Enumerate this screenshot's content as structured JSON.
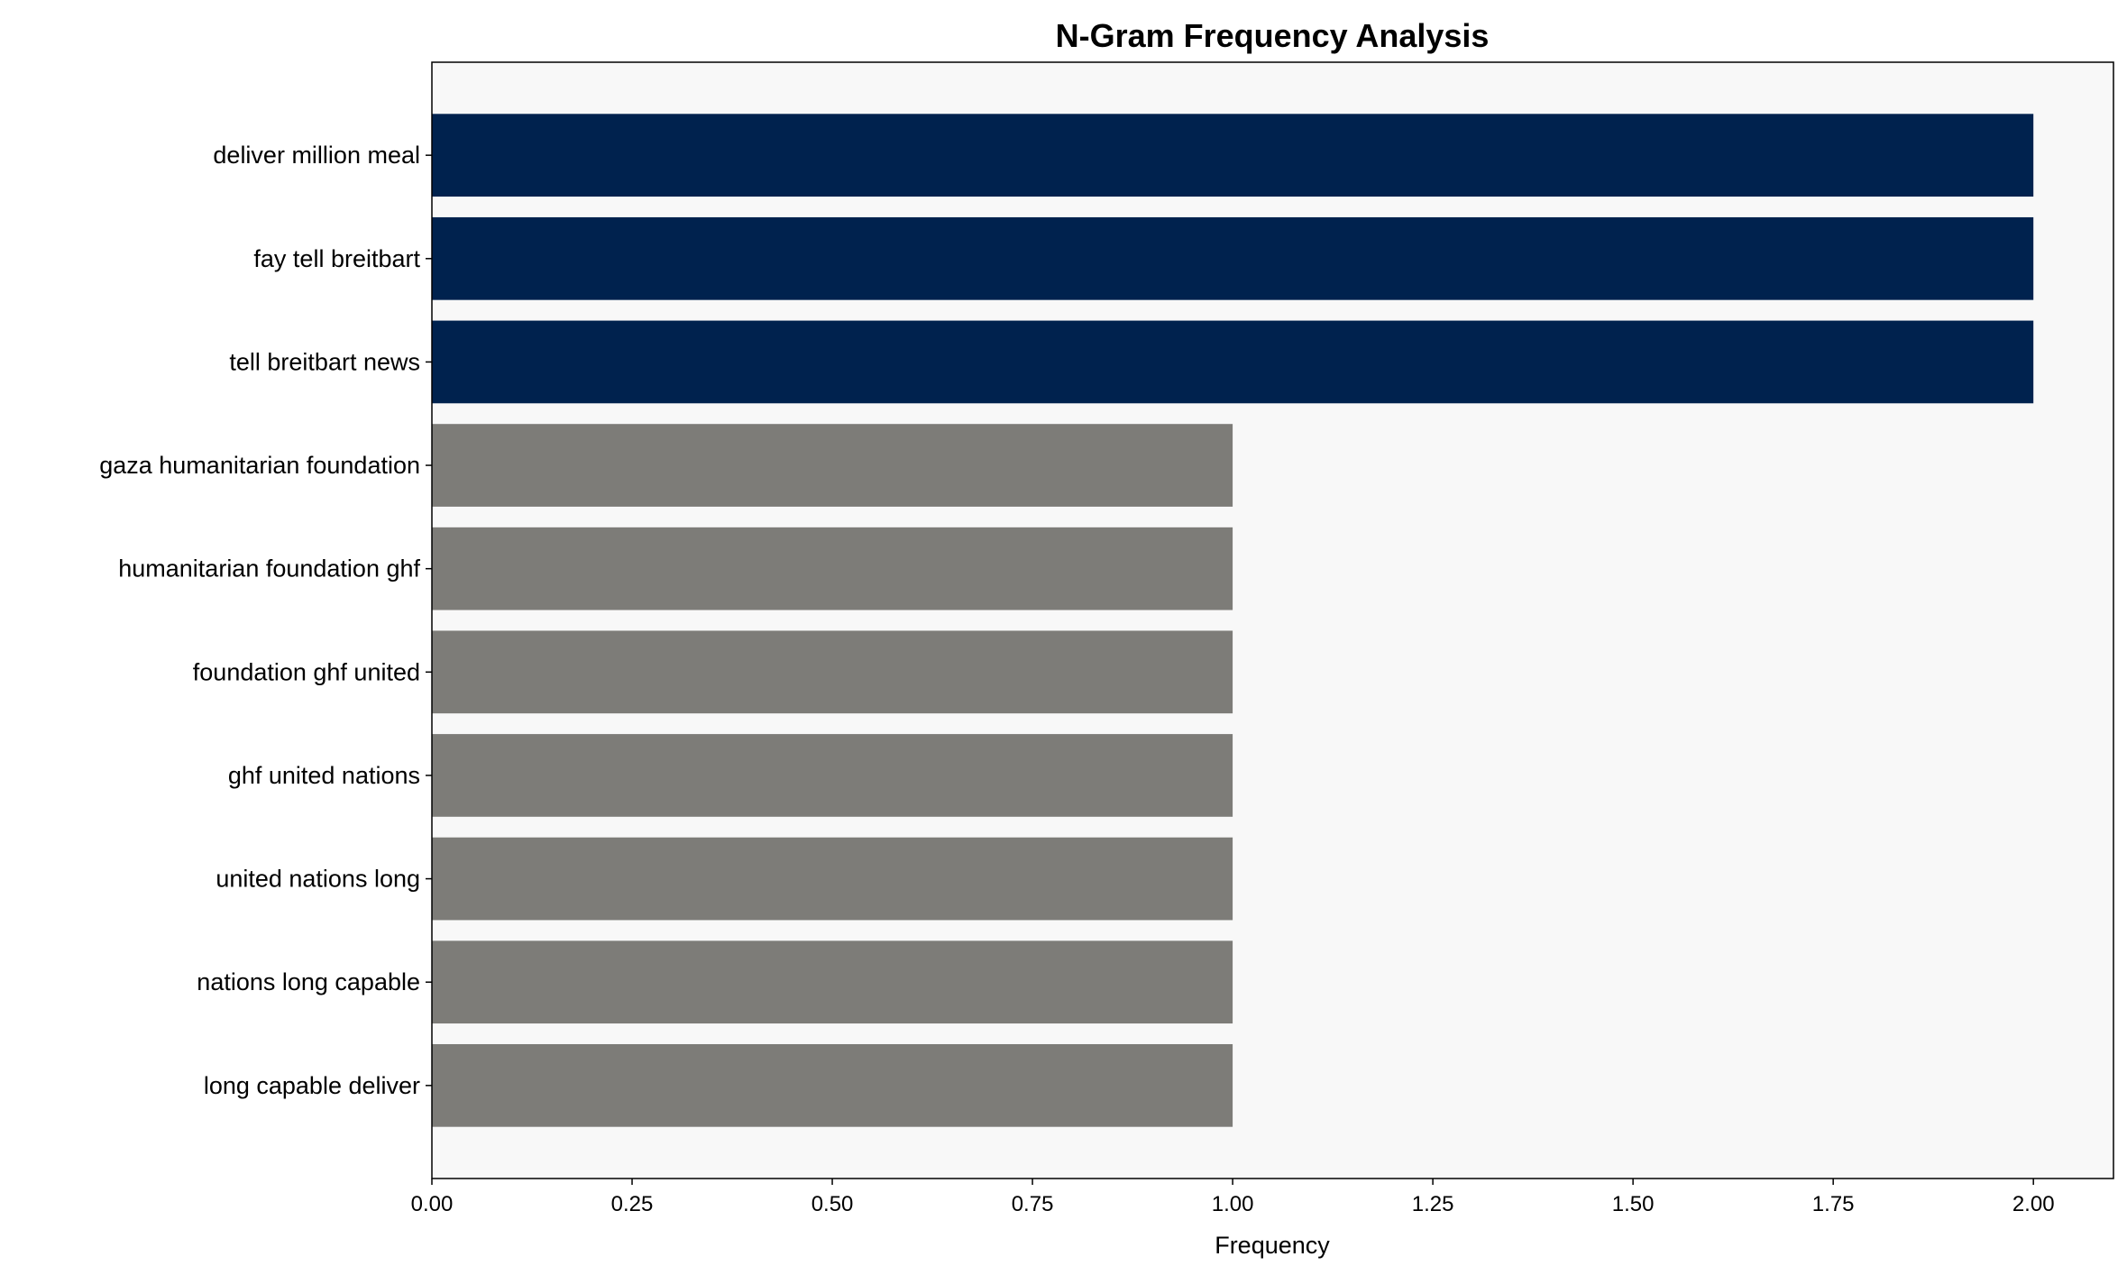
{
  "chart_data": {
    "type": "bar",
    "orientation": "horizontal",
    "title": "N-Gram Frequency Analysis",
    "xlabel": "Frequency",
    "ylabel": "",
    "categories": [
      "deliver million meal",
      "fay tell breitbart",
      "tell breitbart news",
      "gaza humanitarian foundation",
      "humanitarian foundation ghf",
      "foundation ghf united",
      "ghf united nations",
      "united nations long",
      "nations long capable",
      "long capable deliver"
    ],
    "values": [
      2,
      2,
      2,
      1,
      1,
      1,
      1,
      1,
      1,
      1
    ],
    "xlim": [
      0,
      2.1
    ],
    "xticks": [
      "0.00",
      "0.25",
      "0.50",
      "0.75",
      "1.00",
      "1.25",
      "1.50",
      "1.75",
      "2.00"
    ],
    "grid": false,
    "legend": "none",
    "colors": {
      "high": "#00224e",
      "low": "#7d7c78",
      "plot_background": "#f8f8f8"
    }
  }
}
